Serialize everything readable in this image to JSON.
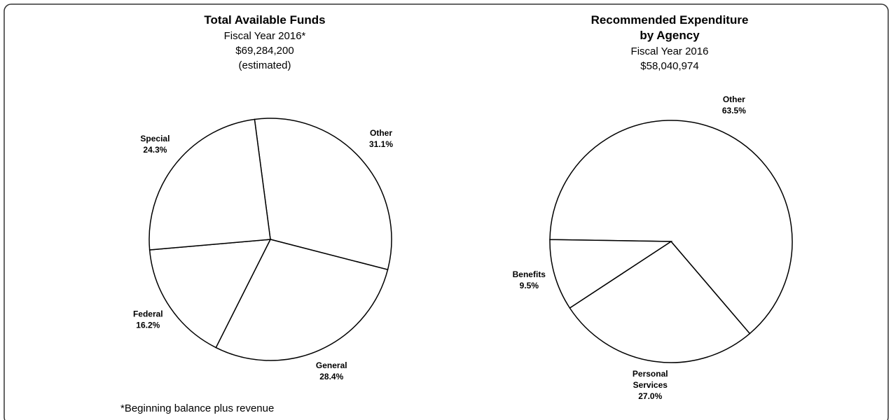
{
  "chart_data": [
    {
      "type": "pie",
      "title": [
        "Total Available Funds"
      ],
      "subtitle": [
        "Fiscal Year 2016*",
        "$69,284,200",
        "(estimated)"
      ],
      "categories": [
        "Other",
        "General",
        "Federal",
        "Special"
      ],
      "values": [
        31.1,
        28.4,
        16.2,
        24.3
      ],
      "value_labels": [
        "31.1%",
        "28.4%",
        "16.2%",
        "24.3%"
      ],
      "color": "#ffffff",
      "footnote": "*Beginning balance plus revenue"
    },
    {
      "type": "pie",
      "title": [
        "Recommended Expenditure",
        "by Agency"
      ],
      "subtitle": [
        "Fiscal Year 2016",
        "$58,040,974"
      ],
      "categories": [
        "Other",
        "Personal Services",
        "Benefits"
      ],
      "values": [
        63.5,
        27.0,
        9.5
      ],
      "value_labels": [
        "63.5%",
        "27.0%",
        "9.5%"
      ],
      "color": "#ffffff"
    }
  ]
}
